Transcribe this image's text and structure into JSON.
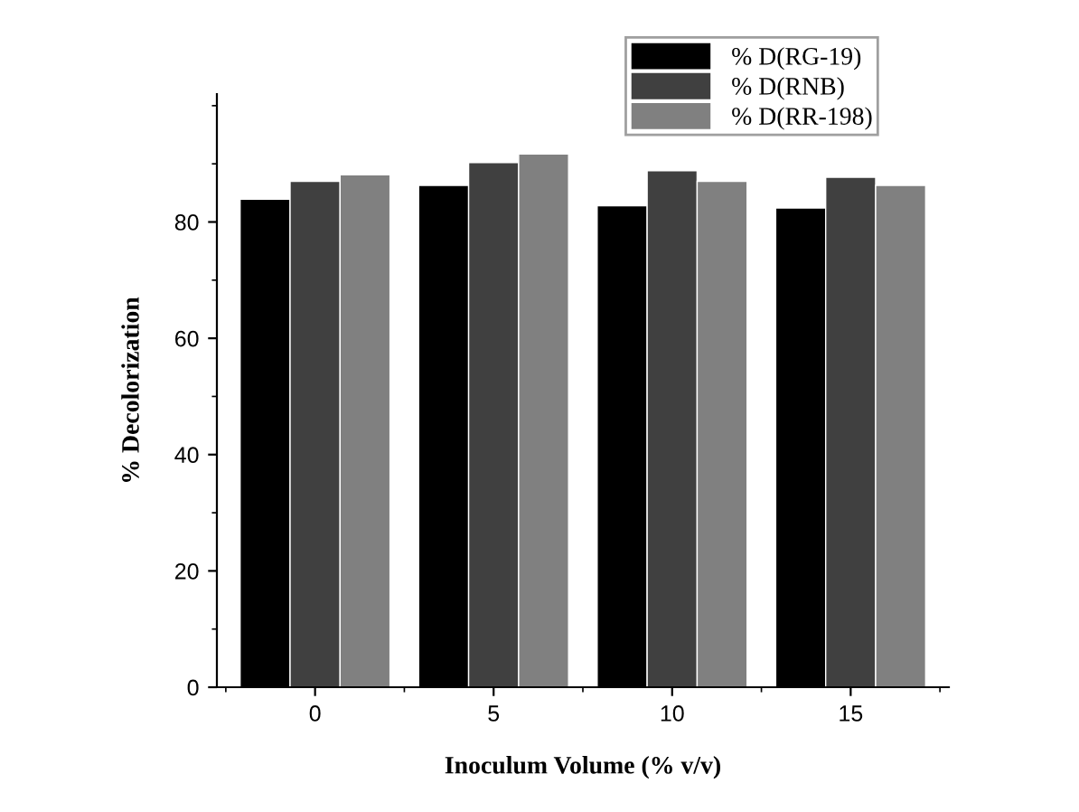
{
  "chart_data": {
    "type": "bar",
    "xlabel": "Inoculum Volume (% v/v)",
    "ylabel": "% Decolorization",
    "categories": [
      "0",
      "5",
      "10",
      "15"
    ],
    "series": [
      {
        "name": "% D(RG-19)",
        "color": "#000000",
        "values": [
          83.9,
          86.3,
          82.8,
          82.4
        ]
      },
      {
        "name": "% D(RNB)",
        "color": "#404040",
        "values": [
          87.0,
          90.2,
          88.8,
          87.7
        ]
      },
      {
        "name": "% D(RR-198)",
        "color": "#808080",
        "values": [
          88.1,
          91.7,
          87.0,
          86.3
        ]
      }
    ],
    "ylim": [
      0,
      102
    ],
    "yticks": [
      0,
      20,
      40,
      60,
      80
    ],
    "grid": false,
    "legend": "top right"
  }
}
